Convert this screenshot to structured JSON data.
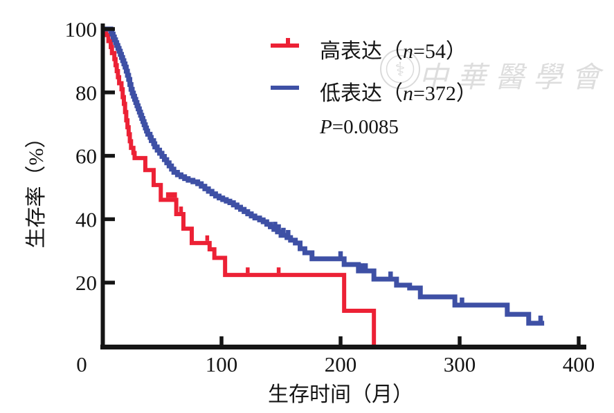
{
  "page": {
    "background": "#ffffff",
    "axis_color": "#151515"
  },
  "axes": {
    "x_label": "生存时间（月）",
    "y_label": "生存率（%）",
    "x_ticks": [
      {
        "value": 0,
        "label": "0",
        "mark": false,
        "shift": -30
      },
      {
        "value": 100,
        "label": "100",
        "mark": true
      },
      {
        "value": 200,
        "label": "200",
        "mark": true
      },
      {
        "value": 300,
        "label": "300",
        "mark": true
      },
      {
        "value": 400,
        "label": "400",
        "mark": true
      }
    ],
    "y_ticks": [
      {
        "value": 20,
        "label": "20"
      },
      {
        "value": 40,
        "label": "40"
      },
      {
        "value": 60,
        "label": "60"
      },
      {
        "value": 80,
        "label": "80"
      },
      {
        "value": 100,
        "label": "100"
      }
    ]
  },
  "legend": {
    "items": [
      {
        "key": "high-expression",
        "pre": "高表达（",
        "var": "n",
        "post": "=54）",
        "color": "#EC2135"
      },
      {
        "key": "low-expression",
        "pre": "低表达（",
        "var": "n",
        "post": "=372）",
        "color": "#3E50A5"
      }
    ],
    "p_label": {
      "var": "P",
      "rest": "=0.0085"
    }
  },
  "watermark": {
    "text": "中華醫學會",
    "emblem": "chinese-medical-association-seal",
    "color": "#c8c8c8"
  },
  "chart_data": {
    "type": "line",
    "subtype": "kaplan_meier_step",
    "title": "",
    "xlabel": "生存时间（月）",
    "ylabel": "生存率（%）",
    "xlim": [
      0,
      400
    ],
    "ylim": [
      0,
      100
    ],
    "x_ticks": [
      0,
      100,
      200,
      300,
      400
    ],
    "y_ticks": [
      20,
      40,
      60,
      80,
      100
    ],
    "grid": false,
    "legend_position": "upper right",
    "annotation": "P=0.0085",
    "series": [
      {
        "name": "高表达（n=54）",
        "key": "high-expression",
        "color": "#EC2135",
        "line_width": 6,
        "points": [
          [
            0,
            100
          ],
          [
            3,
            98.1
          ],
          [
            5,
            96.2
          ],
          [
            7,
            94.3
          ],
          [
            8,
            92.4
          ],
          [
            10,
            90.5
          ],
          [
            11,
            88.6
          ],
          [
            12,
            86.7
          ],
          [
            13,
            84.8
          ],
          [
            14,
            82.9
          ],
          [
            16,
            81.0
          ],
          [
            17,
            78.5
          ],
          [
            18,
            76.4
          ],
          [
            19,
            73.8
          ],
          [
            20,
            71.2
          ],
          [
            21,
            69.0
          ],
          [
            22,
            66.8
          ],
          [
            23,
            64.6
          ],
          [
            24,
            62.5
          ],
          [
            26,
            60.9
          ],
          [
            27,
            59.3
          ],
          [
            36,
            55.5
          ],
          [
            43,
            50.8
          ],
          [
            49,
            46.1
          ],
          [
            62,
            41.6
          ],
          [
            68,
            37.0
          ],
          [
            75,
            32.5
          ],
          [
            90,
            30.5
          ],
          [
            94,
            27.8
          ],
          [
            103,
            22.4
          ],
          [
            203,
            11.1
          ],
          [
            228,
            0
          ]
        ],
        "censors": [
          [
            55,
            46.1
          ],
          [
            58,
            46.1
          ],
          [
            61,
            46.1
          ],
          [
            66,
            41.6
          ],
          [
            88,
            32.5
          ],
          [
            122,
            22.4
          ],
          [
            148,
            22.4
          ]
        ],
        "ends_at_zero": true
      },
      {
        "name": "低表达（n=372）",
        "key": "low-expression",
        "color": "#3E50A5",
        "line_width": 7,
        "points": [
          [
            0,
            100
          ],
          [
            7,
            99.3
          ],
          [
            8,
            98.4
          ],
          [
            9,
            97.5
          ],
          [
            10,
            96.6
          ],
          [
            11,
            95.7
          ],
          [
            12,
            94.8
          ],
          [
            13,
            93.9
          ],
          [
            14,
            93.0
          ],
          [
            15,
            92.0
          ],
          [
            16,
            91.0
          ],
          [
            17,
            90.0
          ],
          [
            18,
            89.0
          ],
          [
            19,
            88.0
          ],
          [
            20,
            86.7
          ],
          [
            21,
            85.4
          ],
          [
            22,
            84.1
          ],
          [
            23,
            82.5
          ],
          [
            24,
            81.0
          ],
          [
            25,
            79.8
          ],
          [
            26,
            78.8
          ],
          [
            27,
            77.8
          ],
          [
            28,
            76.8
          ],
          [
            29,
            75.8
          ],
          [
            30,
            74.8
          ],
          [
            31,
            73.8
          ],
          [
            32,
            72.8
          ],
          [
            33,
            71.8
          ],
          [
            34,
            70.8
          ],
          [
            35,
            69.8
          ],
          [
            36,
            68.8
          ],
          [
            37,
            67.8
          ],
          [
            38,
            66.8
          ],
          [
            40,
            65.8
          ],
          [
            41,
            64.8
          ],
          [
            43,
            63.8
          ],
          [
            44,
            62.8
          ],
          [
            46,
            61.8
          ],
          [
            48,
            60.8
          ],
          [
            50,
            59.8
          ],
          [
            52,
            58.8
          ],
          [
            54,
            57.8
          ],
          [
            56,
            56.8
          ],
          [
            58,
            55.8
          ],
          [
            60,
            54.8
          ],
          [
            63,
            54.0
          ],
          [
            66,
            53.4
          ],
          [
            69,
            52.8
          ],
          [
            72,
            52.3
          ],
          [
            76,
            51.8
          ],
          [
            80,
            51.2
          ],
          [
            83,
            50.4
          ],
          [
            86,
            49.6
          ],
          [
            89,
            48.8
          ],
          [
            92,
            48.0
          ],
          [
            95,
            47.3
          ],
          [
            98,
            46.7
          ],
          [
            101,
            46.2
          ],
          [
            104,
            45.7
          ],
          [
            107,
            45.2
          ],
          [
            110,
            44.5
          ],
          [
            113,
            43.8
          ],
          [
            116,
            43.1
          ],
          [
            119,
            42.4
          ],
          [
            122,
            41.7
          ],
          [
            125,
            41.0
          ],
          [
            128,
            40.4
          ],
          [
            132,
            39.8
          ],
          [
            135,
            39.2
          ],
          [
            138,
            38.4
          ],
          [
            141,
            37.6
          ],
          [
            144,
            36.8
          ],
          [
            147,
            36.0
          ],
          [
            150,
            34.9
          ],
          [
            155,
            34.2
          ],
          [
            158,
            33.4
          ],
          [
            162,
            32.5
          ],
          [
            166,
            30.7
          ],
          [
            170,
            29.4
          ],
          [
            176,
            27.5
          ],
          [
            203,
            25.7
          ],
          [
            215,
            23.7
          ],
          [
            228,
            21.1
          ],
          [
            247,
            19.2
          ],
          [
            258,
            18.3
          ],
          [
            267,
            15.5
          ],
          [
            296,
            12.9
          ],
          [
            340,
            10.0
          ],
          [
            358,
            7.2
          ],
          [
            371,
            7.2
          ]
        ],
        "censors": [
          [
            145,
            36.8
          ],
          [
            148,
            36.0
          ],
          [
            152,
            34.9
          ],
          [
            156,
            34.2
          ],
          [
            200,
            27.5
          ],
          [
            218,
            23.7
          ],
          [
            221,
            23.7
          ],
          [
            242,
            21.1
          ],
          [
            302,
            12.9
          ],
          [
            368,
            7.2
          ]
        ],
        "ends_at_zero": false
      }
    ]
  }
}
